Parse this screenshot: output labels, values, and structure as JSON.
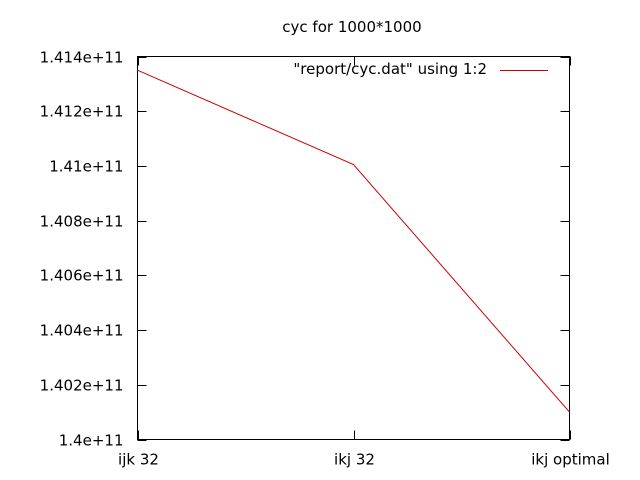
{
  "chart_data": {
    "type": "line",
    "title": "cyc for 1000*1000",
    "xlabel": "",
    "ylabel": "",
    "categories": [
      "ijk 32",
      "ikj 32",
      "ikj optimal"
    ],
    "series": [
      {
        "name": "\"report/cyc.dat\" using 1:2",
        "values": [
          141350000000,
          141005000000,
          140100000000
        ],
        "color": "#cc0000"
      }
    ],
    "ylim": [
      140000000000,
      141400000000
    ],
    "yticks": [
      140000000000,
      140200000000,
      140400000000,
      140600000000,
      140800000000,
      141000000000,
      141200000000,
      141400000000
    ],
    "ytick_labels": [
      "1.4e+11",
      "1.402e+11",
      "1.404e+11",
      "1.406e+11",
      "1.408e+11",
      "1.41e+11",
      "1.412e+11",
      "1.414e+11"
    ],
    "grid": false,
    "legend_position": "top-right"
  }
}
